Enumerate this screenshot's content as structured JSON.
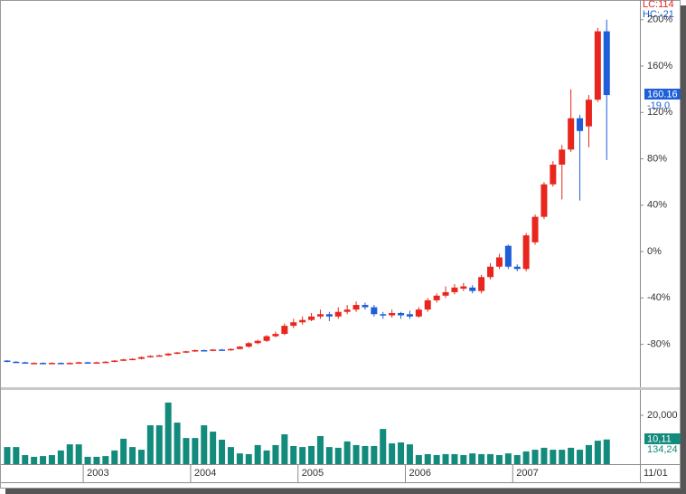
{
  "chart_data": {
    "type": "candlestick",
    "categories": [
      null,
      null,
      null,
      null,
      null,
      null,
      null,
      null,
      null,
      "2003",
      null,
      null,
      null,
      null,
      null,
      null,
      null,
      null,
      null,
      null,
      null,
      "2004",
      null,
      null,
      null,
      null,
      null,
      null,
      null,
      null,
      null,
      null,
      null,
      "2005",
      null,
      null,
      null,
      null,
      null,
      null,
      null,
      null,
      null,
      null,
      null,
      "2006",
      null,
      null,
      null,
      null,
      null,
      null,
      null,
      null,
      null,
      null,
      null,
      "2007",
      null,
      null,
      null,
      null,
      null,
      null,
      null,
      null,
      null,
      null
    ],
    "x_end_label": "11/01",
    "up_color": "#e8261e",
    "down_color": "#1e5ed8",
    "series": {
      "open": [
        -94,
        -95,
        -95.5,
        -96,
        -96,
        -96.5,
        -96,
        -96.5,
        -96,
        -95.5,
        -96,
        -95.5,
        -95,
        -94,
        -93,
        -92.5,
        -91,
        -90,
        -89.5,
        -88,
        -87,
        -86,
        -85,
        -85.5,
        -84.5,
        -85,
        -84,
        -82,
        -79,
        -77,
        -73,
        -71,
        -64,
        -61,
        -59,
        -56,
        -54,
        -56,
        -52,
        -50,
        -46,
        -48,
        -54,
        -55,
        -53,
        -54,
        -56,
        -50,
        -42,
        -38,
        -35,
        -32,
        -31,
        -34,
        -22,
        -13,
        5,
        -13,
        -15,
        8,
        30,
        58,
        75,
        88,
        115,
        108,
        131,
        190
      ],
      "high": [
        -93.5,
        -94.5,
        -95,
        -95.5,
        -95.5,
        -95.5,
        -95.5,
        -95.5,
        -95,
        -95,
        -95,
        -94.5,
        -93.5,
        -92.5,
        -92,
        -90.5,
        -89.5,
        -89,
        -87.5,
        -86.5,
        -85.5,
        -84.5,
        -84.5,
        -84,
        -84,
        -83.5,
        -81.5,
        -78,
        -76,
        -72,
        -69,
        -62,
        -58,
        -56,
        -53,
        -50,
        -52,
        -48,
        -46,
        -43,
        -44,
        -46,
        -52,
        -50,
        -52,
        -51,
        -48,
        -40,
        -36,
        -30,
        -28,
        -27,
        -29,
        -20,
        -10,
        -2,
        6,
        -11,
        16,
        32,
        60,
        78,
        92,
        140,
        118,
        135,
        193,
        200
      ],
      "low": [
        -95.5,
        -96,
        -96.5,
        -96.5,
        -97,
        -97,
        -97,
        -97,
        -96.5,
        -96.5,
        -96.5,
        -96,
        -95.5,
        -94.5,
        -93.5,
        -93,
        -91.5,
        -90.5,
        -90,
        -88.5,
        -87.5,
        -86.5,
        -86,
        -86,
        -85.5,
        -85.5,
        -84.5,
        -83,
        -80,
        -78,
        -74,
        -72,
        -66,
        -63,
        -60,
        -58,
        -60,
        -58,
        -54,
        -52,
        -50,
        -56,
        -58,
        -57,
        -58,
        -58,
        -57,
        -52,
        -44,
        -40,
        -37,
        -34,
        -36,
        -36,
        -24,
        -15,
        -15,
        -17,
        -17,
        6,
        28,
        56,
        45,
        86,
        44,
        90,
        129,
        79
      ],
      "close": [
        -95,
        -95.5,
        -96,
        -96,
        -96.5,
        -96,
        -96.5,
        -96,
        -95.5,
        -96,
        -95.5,
        -95,
        -94,
        -93,
        -92.5,
        -91,
        -90,
        -89.5,
        -88,
        -87,
        -86,
        -85,
        -85.5,
        -84.5,
        -85,
        -84,
        -82,
        -79,
        -77,
        -73,
        -71,
        -64,
        -61,
        -59,
        -56,
        -54,
        -56,
        -52,
        -50,
        -46,
        -48,
        -54,
        -55,
        -53,
        -55,
        -56,
        -50,
        -42,
        -38,
        -35,
        -31,
        -30,
        -34,
        -22,
        -13,
        -5,
        -13,
        -15,
        14,
        30,
        58,
        75,
        88,
        115,
        104,
        131,
        190,
        135
      ]
    },
    "ylim": [
      -117,
      217
    ],
    "yticks": [
      {
        "value": -80,
        "label": "-80%"
      },
      {
        "value": -40,
        "label": "-40%"
      },
      {
        "value": 0,
        "label": "0%"
      },
      {
        "value": 40,
        "label": "40%"
      },
      {
        "value": 80,
        "label": "80%"
      },
      {
        "value": 120,
        "label": "120%"
      },
      {
        "value": 160,
        "label": "160%"
      },
      {
        "value": 200,
        "label": "200%"
      }
    ],
    "readouts": {
      "lc": "LC:114",
      "hc": "HC:-21",
      "price": "160.16",
      "change": "-19.0",
      "volume": "10,11",
      "volume_avg": "134,24"
    },
    "volume": {
      "type": "bar",
      "color": "#128a7c",
      "values": [
        7000,
        7000,
        3700,
        3000,
        3300,
        3700,
        5600,
        8100,
        8100,
        3000,
        3000,
        3300,
        5600,
        10400,
        7000,
        5900,
        15900,
        15900,
        25200,
        17000,
        10700,
        10700,
        15900,
        13300,
        10000,
        7000,
        4400,
        4100,
        7800,
        5600,
        7800,
        12200,
        7400,
        7000,
        7400,
        11500,
        7000,
        6700,
        9300,
        7800,
        7400,
        7400,
        14400,
        8500,
        8900,
        8100,
        3700,
        4100,
        3700,
        4100,
        4100,
        3700,
        4400,
        4100,
        4100,
        3700,
        4400,
        3700,
        5200,
        5900,
        6700,
        5900,
        5900,
        6700,
        5900,
        7800,
        9600,
        10100
      ],
      "ylim": [
        0,
        30000
      ],
      "yticks": [
        {
          "value": 20000,
          "label": "20,000"
        }
      ]
    }
  }
}
